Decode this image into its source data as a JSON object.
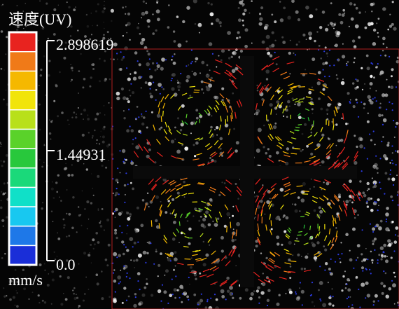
{
  "colorbar": {
    "title": "速度(UV)",
    "unit": "mm/s",
    "ticks": [
      {
        "value": 0,
        "label": "0.0"
      },
      1.44931,
      2.898619
    ],
    "colors": [
      "#1a2ed8",
      "#1e78e8",
      "#18c8f0",
      "#10e0c8",
      "#1ad97a",
      "#28c83c",
      "#5ad22a",
      "#b8e01a",
      "#f1e40a",
      "#f5b800",
      "#f07a18",
      "#e8231f"
    ]
  }
}
